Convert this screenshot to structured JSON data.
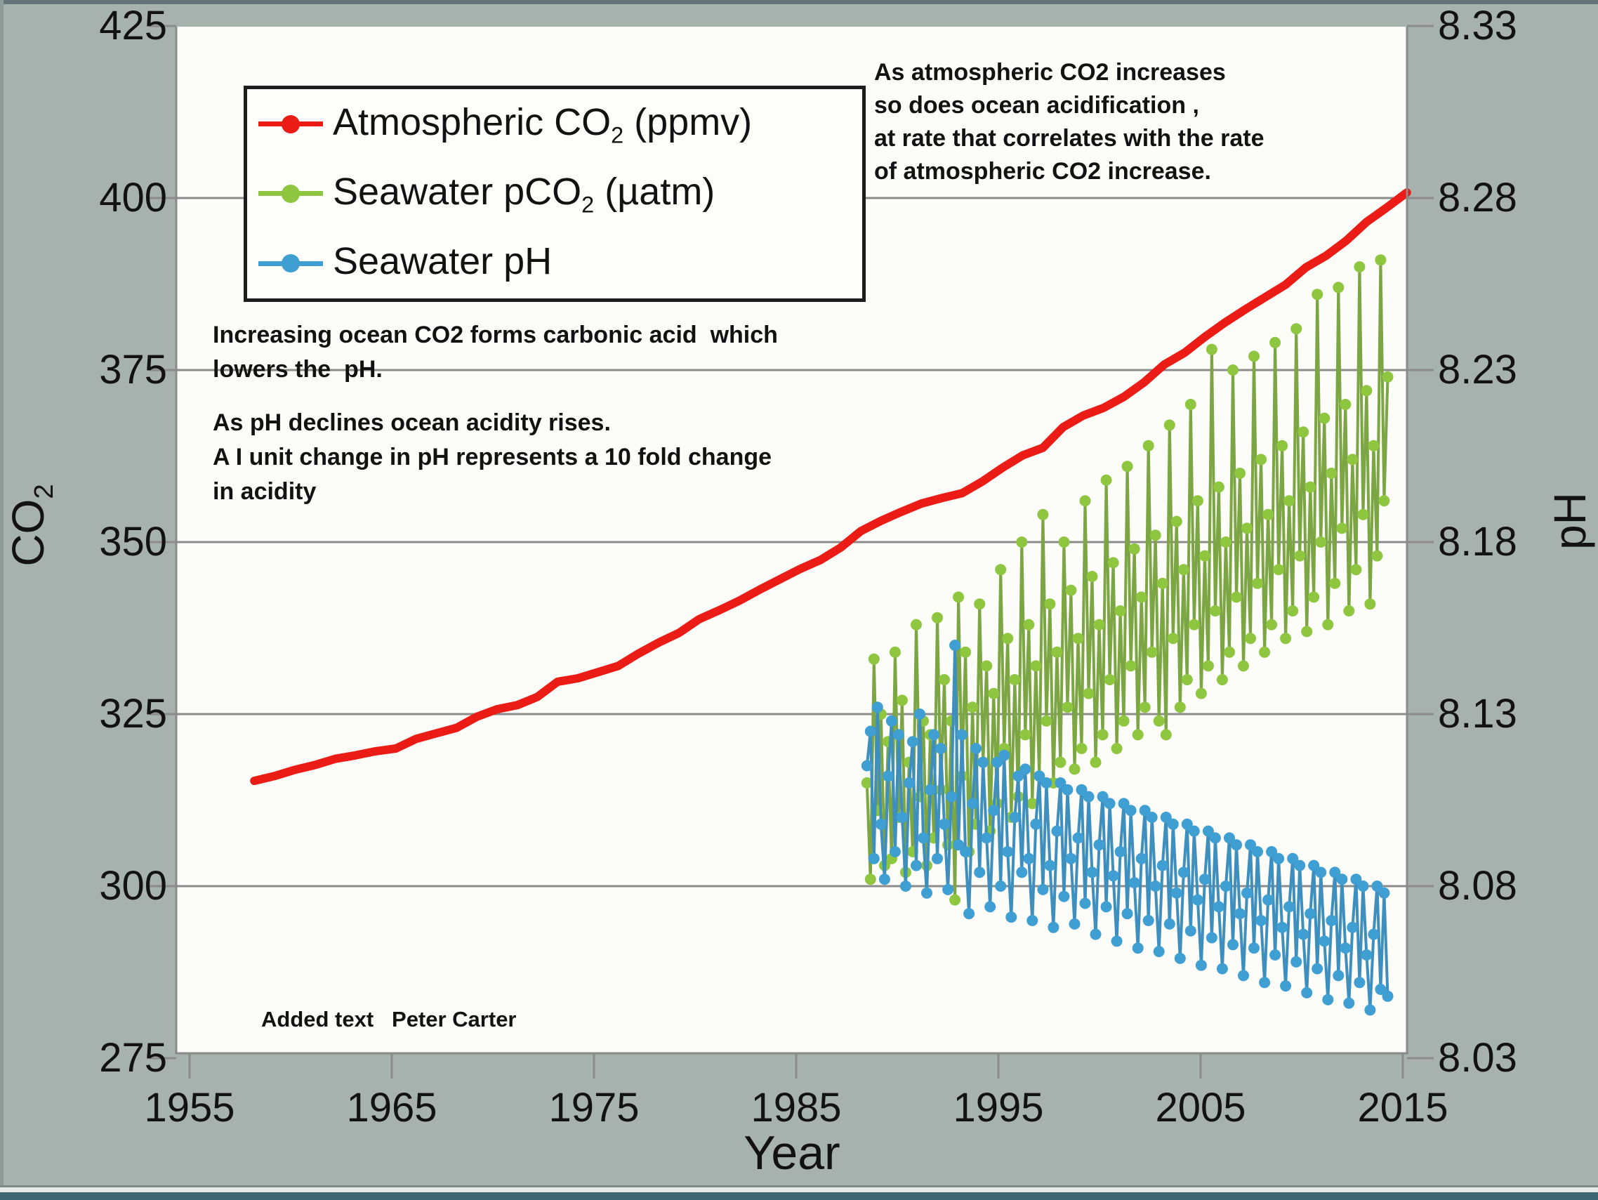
{
  "colors": {
    "background": "#a7b2ae",
    "plot_background": "#fcfcf8",
    "grid": "#8b8b8b",
    "axis": "#8b8b8b",
    "atmospheric_co2_red": "#ea1c15",
    "seawater_pco2_green": "#8fc640",
    "seawater_ph_blue": "#3f9ed2",
    "bottom_bar_teal": "#3c6472"
  },
  "annotations": {
    "right_block": {
      "lines": [
        "As atmospheric CO2 increases",
        "so does ocean acidification ,",
        "at rate that correlates with the rate",
        "of atmospheric CO2 increase."
      ]
    },
    "carbonic_block": {
      "lines": [
        "Increasing ocean CO2 forms carbonic acid  which",
        "lowers the  pH."
      ]
    },
    "ph_block": {
      "lines": [
        "As pH declines ocean acidity rises.",
        "A I unit change in pH represents a 10 fold change",
        "in acidity"
      ]
    }
  },
  "credit": "Added text   Peter Carter",
  "chart_data": {
    "type": "line",
    "title": "",
    "xlabel": "Year",
    "ylabel_left": {
      "pre": "CO",
      "sub": "2"
    },
    "ylabel_right": "pH",
    "x_ticks": [
      1955,
      1965,
      1975,
      1985,
      1995,
      2005,
      2015
    ],
    "y_left_ticks": [
      425,
      400,
      375,
      350,
      325,
      300,
      275
    ],
    "y_right_ticks": [
      "8.33",
      "8.28",
      "8.23",
      "8.18",
      "8.13",
      "8.08",
      "8.03"
    ],
    "y_gridlines": [
      400,
      375,
      350,
      325,
      300
    ],
    "x_range": [
      1954.3,
      2015.3
    ],
    "y_left_range": [
      275,
      425
    ],
    "y_right_range": [
      8.03,
      8.33
    ],
    "grid": true,
    "legend_position": "top-left",
    "series": [
      {
        "name": "Atmospheric CO2 (ppmv)",
        "legend": {
          "pre": "Atmospheric CO",
          "sub": "2",
          "post": " (ppmv)"
        },
        "axis": "left",
        "units": "ppmv",
        "color": "#ea1c15",
        "line_color": "#ea1c15",
        "line_width": 12,
        "marker_r": 0,
        "x_start": 1958.2,
        "x_step": 1.0,
        "values": [
          315.3,
          316.0,
          316.9,
          317.6,
          318.5,
          319.0,
          319.6,
          320.0,
          321.4,
          322.2,
          323.0,
          324.6,
          325.7,
          326.3,
          327.5,
          329.7,
          330.2,
          331.1,
          332.0,
          333.8,
          335.4,
          336.8,
          338.8,
          340.1,
          341.5,
          343.1,
          344.6,
          346.1,
          347.4,
          349.2,
          351.6,
          353.1,
          354.4,
          355.6,
          356.4,
          357.1,
          358.8,
          360.8,
          362.6,
          363.7,
          366.7,
          368.4,
          369.5,
          371.1,
          373.2,
          375.8,
          377.5,
          379.8,
          381.9,
          383.8,
          385.6,
          387.4,
          389.9,
          391.6,
          393.8,
          396.5,
          398.6,
          400.8
        ]
      },
      {
        "name": "Seawater pCO2 (µatm)",
        "legend": {
          "pre": "Seawater pCO",
          "sub": "2",
          "post": " (µatm)"
        },
        "axis": "left",
        "units": "µatm",
        "color": "#8fc640",
        "line_color": "#7ca544",
        "line_width": 4,
        "marker_r": 8,
        "x_start": 1988.5,
        "x_step": 0.174,
        "values": [
          315,
          301,
          333,
          311,
          325,
          303,
          321,
          304,
          334,
          310,
          327,
          302,
          318,
          305,
          338,
          313,
          324,
          303,
          322,
          307,
          339,
          314,
          330,
          306,
          324,
          298,
          342,
          316,
          334,
          305,
          326,
          309,
          341,
          318,
          332,
          308,
          328,
          312,
          346,
          320,
          336,
          310,
          330,
          313,
          350,
          322,
          338,
          312,
          332,
          316,
          354,
          324,
          341,
          315,
          334,
          318,
          350,
          326,
          343,
          317,
          336,
          320,
          356,
          328,
          345,
          318,
          338,
          322,
          359,
          330,
          347,
          320,
          340,
          324,
          361,
          332,
          349,
          322,
          342,
          326,
          364,
          334,
          351,
          324,
          344,
          322,
          367,
          336,
          353,
          326,
          346,
          330,
          370,
          338,
          356,
          328,
          348,
          332,
          378,
          340,
          358,
          330,
          350,
          334,
          375,
          342,
          360,
          332,
          352,
          336,
          377,
          344,
          362,
          334,
          354,
          338,
          379,
          346,
          364,
          336,
          356,
          340,
          381,
          348,
          366,
          337,
          358,
          342,
          386,
          350,
          368,
          338,
          360,
          344,
          387,
          352,
          370,
          340,
          362,
          346,
          390,
          354,
          372,
          341,
          364,
          348,
          391,
          356,
          374
        ]
      },
      {
        "name": "Seawater pH",
        "legend": {
          "pre": "Seawater pH",
          "sub": "",
          "post": ""
        },
        "axis": "right",
        "units": "pH",
        "color": "#3f9ed2",
        "line_color": "#3e8fbe",
        "line_width": 4,
        "marker_r": 8,
        "x_start": 1988.5,
        "x_step": 0.174,
        "values": [
          8.115,
          8.125,
          8.088,
          8.132,
          8.098,
          8.082,
          8.112,
          8.128,
          8.09,
          8.124,
          8.1,
          8.08,
          8.11,
          8.122,
          8.086,
          8.13,
          8.094,
          8.078,
          8.108,
          8.124,
          8.088,
          8.12,
          8.098,
          8.079,
          8.106,
          8.15,
          8.092,
          8.124,
          8.09,
          8.072,
          8.104,
          8.12,
          8.084,
          8.116,
          8.094,
          8.074,
          8.102,
          8.116,
          8.08,
          8.118,
          8.09,
          8.071,
          8.1,
          8.112,
          8.084,
          8.114,
          8.088,
          8.07,
          8.098,
          8.112,
          8.079,
          8.11,
          8.086,
          8.068,
          8.096,
          8.11,
          8.077,
          8.108,
          8.088,
          8.069,
          8.094,
          8.108,
          8.075,
          8.106,
          8.084,
          8.066,
          8.092,
          8.106,
          8.074,
          8.104,
          8.083,
          8.064,
          8.09,
          8.104,
          8.072,
          8.102,
          8.081,
          8.062,
          8.088,
          8.102,
          8.07,
          8.1,
          8.08,
          8.061,
          8.086,
          8.1,
          8.069,
          8.098,
          8.078,
          8.059,
          8.084,
          8.098,
          8.067,
          8.096,
          8.076,
          8.057,
          8.082,
          8.096,
          8.065,
          8.094,
          8.074,
          8.056,
          8.08,
          8.094,
          8.063,
          8.092,
          8.072,
          8.054,
          8.078,
          8.092,
          8.062,
          8.09,
          8.07,
          8.052,
          8.076,
          8.09,
          8.06,
          8.088,
          8.068,
          8.051,
          8.074,
          8.088,
          8.058,
          8.086,
          8.066,
          8.049,
          8.072,
          8.086,
          8.056,
          8.084,
          8.064,
          8.047,
          8.07,
          8.084,
          8.054,
          8.082,
          8.062,
          8.046,
          8.068,
          8.082,
          8.052,
          8.08,
          8.06,
          8.044,
          8.066,
          8.08,
          8.05,
          8.078,
          8.048
        ]
      }
    ]
  }
}
